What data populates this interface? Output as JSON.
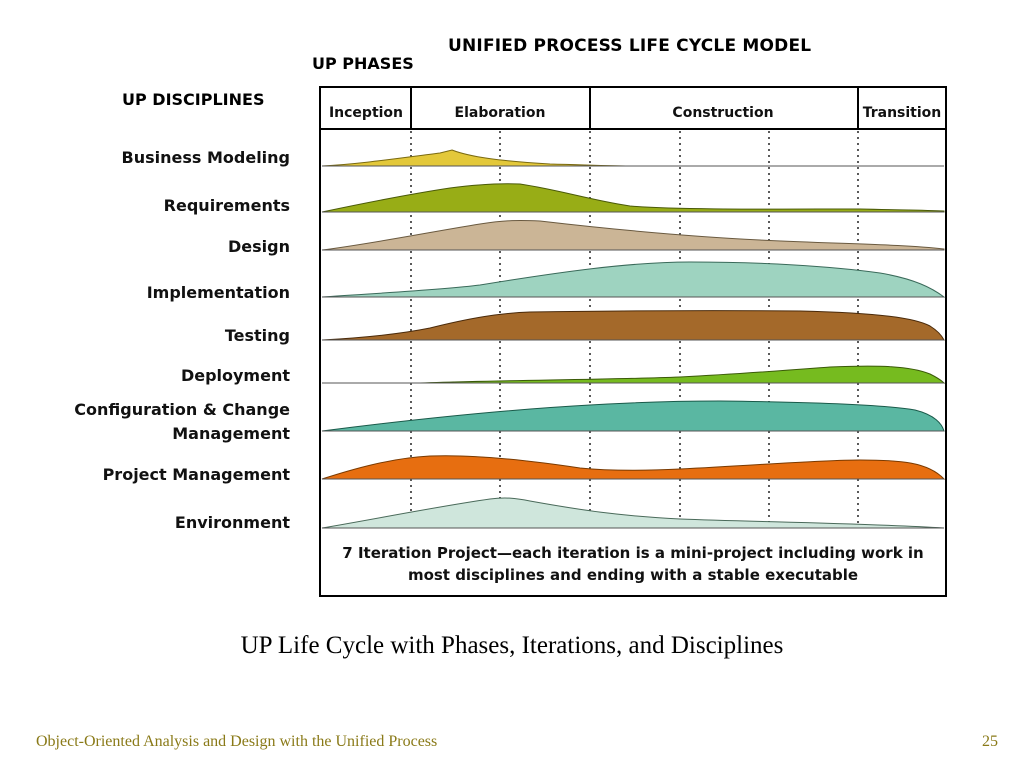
{
  "diagram": {
    "title": "UNIFIED PROCESS LIFE CYCLE MODEL",
    "phases_heading": "UP PHASES",
    "disciplines_heading": "UP DISCIPLINES",
    "phases": [
      {
        "name": "Inception"
      },
      {
        "name": "Elaboration"
      },
      {
        "name": "Construction"
      },
      {
        "name": "Transition"
      }
    ],
    "disciplines": [
      {
        "name": "Business Modeling",
        "color": "#e3c83a"
      },
      {
        "name": "Requirements",
        "color": "#98ad16"
      },
      {
        "name": "Design",
        "color": "#cbb596"
      },
      {
        "name": "Implementation",
        "color": "#9ed3c0"
      },
      {
        "name": "Testing",
        "color": "#a4692a"
      },
      {
        "name": "Deployment",
        "color": "#76bb1f"
      },
      {
        "name": "Configuration & Change Management",
        "color": "#5ab7a2"
      },
      {
        "name": "Project Management",
        "color": "#e76e10"
      },
      {
        "name": "Environment",
        "color": "#cfe6dc"
      }
    ],
    "iteration_note": "7 Iteration Project—each iteration is a mini-project including work in most disciplines and ending with a stable executable"
  },
  "caption": "UP Life Cycle with Phases, Iterations, and Disciplines",
  "footer": {
    "course": "Object-Oriented Analysis and Design with the Unified Process",
    "page_number": "25"
  }
}
